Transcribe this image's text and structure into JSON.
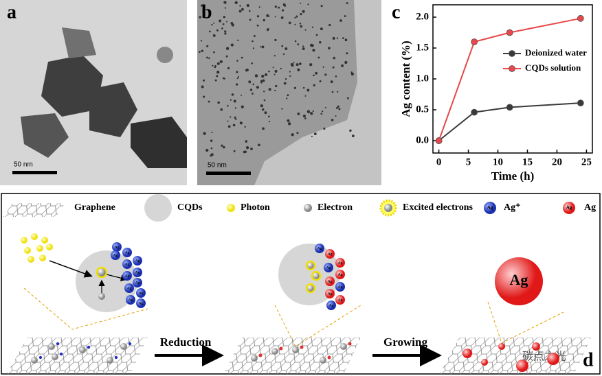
{
  "panels": {
    "a": {
      "label": "a",
      "scale_bar": "50 nm"
    },
    "b": {
      "label": "b",
      "scale_bar": "50 nm"
    },
    "c": {
      "label": "c"
    },
    "d": {
      "label": "d"
    }
  },
  "chart_data": {
    "type": "line",
    "x": [
      0,
      6,
      12,
      24
    ],
    "xlabel": "Time (h)",
    "ylabel": "Ag content (%)",
    "xlim": [
      -1,
      26
    ],
    "ylim": [
      -0.2,
      2.2
    ],
    "xticks": [
      0,
      5,
      10,
      15,
      20,
      25
    ],
    "yticks": [
      {
        "value": 0,
        "label": "0.0"
      },
      0.5,
      {
        "value": 1,
        "label": "1.0"
      },
      1.5,
      {
        "value": 2,
        "label": "2.0"
      }
    ],
    "legend": "center right",
    "series": [
      {
        "name": "Deionized water",
        "color": "#3a3a3a",
        "values": [
          0,
          0.46,
          0.54,
          0.61
        ]
      },
      {
        "name": "CQDs solution",
        "color": "#e8474b",
        "values": [
          0,
          1.6,
          1.75,
          1.98
        ]
      }
    ]
  },
  "schematic": {
    "legend": [
      "Graphene",
      "CQDs",
      "Photon",
      "Electron",
      "Excited electrons",
      "Ag⁺",
      "Ag"
    ],
    "ion_label": "Ag",
    "steps": [
      "Reduction",
      "Growing"
    ],
    "particle_label": "Ag"
  },
  "watermark": "碳点之光"
}
